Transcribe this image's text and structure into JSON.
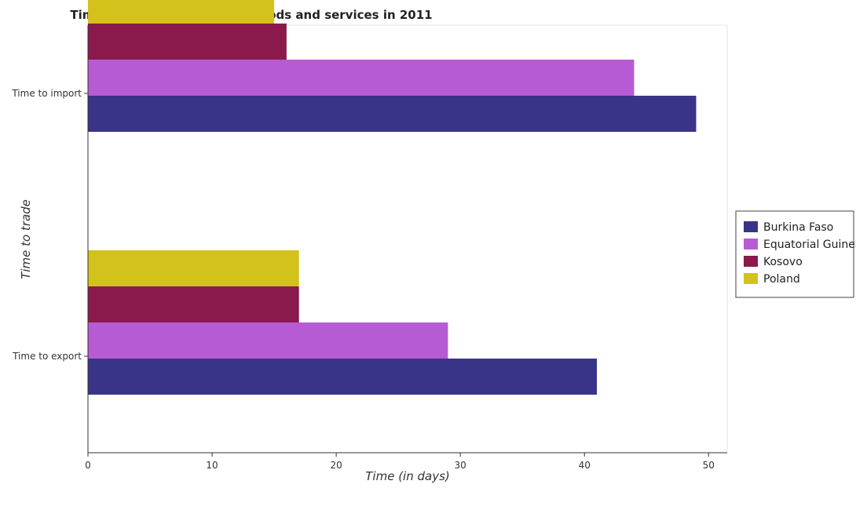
{
  "chart_data": {
    "type": "bar",
    "orientation": "horizontal",
    "title": "Time required to trade the goods and services in 2011",
    "xlabel": "Time (in days)",
    "ylabel": "Time to trade",
    "categories": [
      "Time to export",
      "Time to import"
    ],
    "series": [
      {
        "name": "Burkina Faso",
        "color": "#3a3489",
        "values": [
          41,
          49
        ]
      },
      {
        "name": "Equatorial Guinea",
        "color": "#b65bd3",
        "values": [
          29,
          44
        ]
      },
      {
        "name": "Kosovo",
        "color": "#8b1a4c",
        "values": [
          17,
          16
        ]
      },
      {
        "name": "Poland",
        "color": "#d4c21c",
        "values": [
          17,
          15
        ]
      }
    ],
    "xlim": [
      0,
      51.5
    ],
    "xticks": [
      0,
      10,
      20,
      30,
      40,
      50
    ],
    "grid": false,
    "legend_position": "right"
  }
}
